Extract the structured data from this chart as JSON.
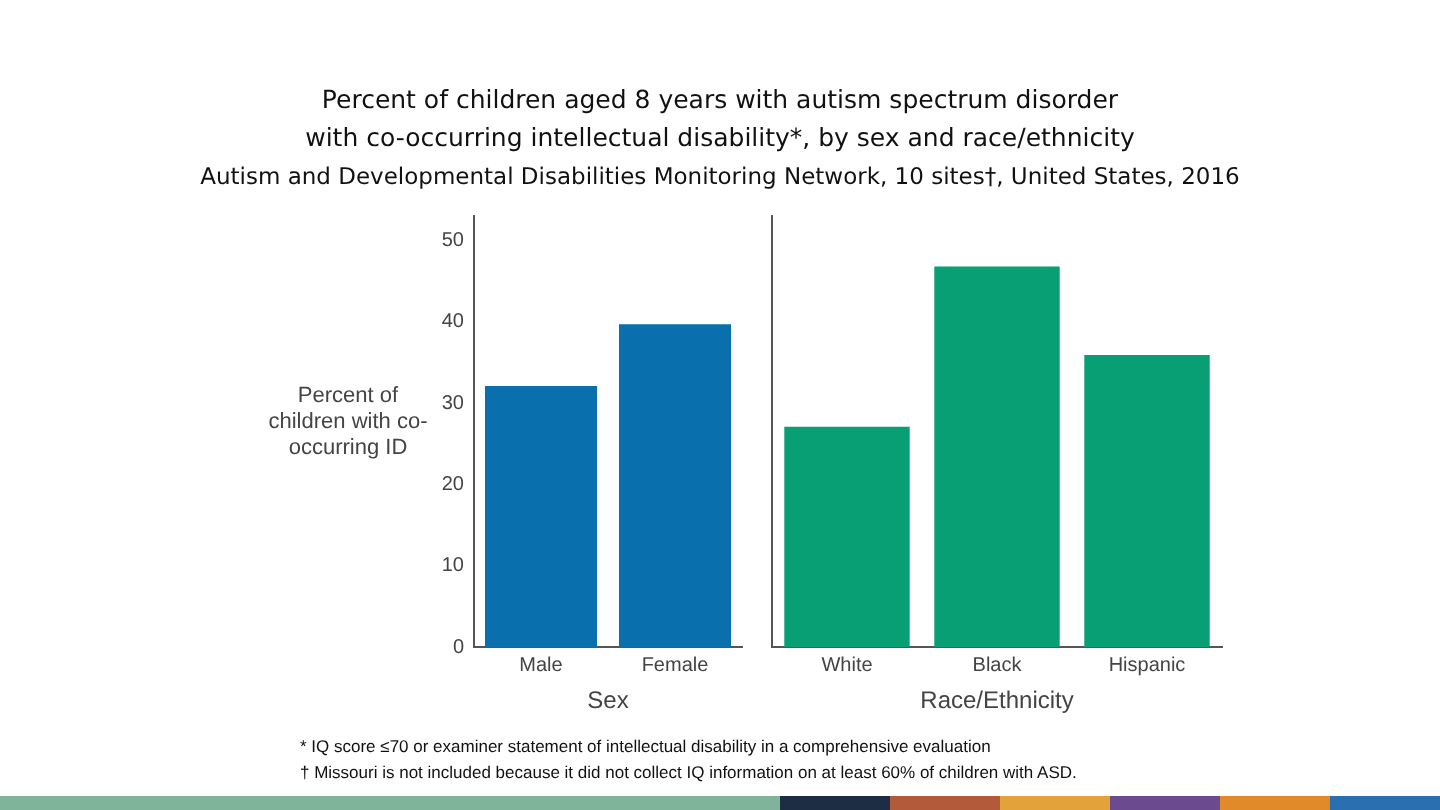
{
  "chart_data": [
    {
      "type": "bar",
      "title": "Percent of children aged 8 years with autism spectrum disorder with co-occurring intellectual disability*, by sex and race/ethnicity",
      "subtitle": "Autism and Developmental Disabilities Monitoring Network, 10 sites†, United States, 2016",
      "ylabel": "Percent of children with co-occurring ID",
      "xlabel": "Sex",
      "categories": [
        "Male",
        "Female"
      ],
      "values": [
        32.1,
        39.7
      ],
      "color": "#0a6fad",
      "ylim": [
        0,
        53
      ],
      "yticks": [
        0,
        10,
        20,
        30,
        40,
        50
      ],
      "annotations": [
        "* IQ score ≤70 or examiner statement of intellectual disability in a comprehensive evaluation",
        "† Missouri is not included because it did not collect IQ information on at least 60% of children with ASD."
      ]
    },
    {
      "type": "bar",
      "xlabel": "Race/Ethnicity",
      "categories": [
        "White",
        "Black",
        "Hispanic"
      ],
      "values": [
        27.1,
        46.8,
        35.9
      ],
      "color": "#089f74",
      "ylim": [
        0,
        53
      ],
      "yticks": [
        0,
        10,
        20,
        30,
        40,
        50
      ],
      "tick_labels": "x"
    }
  ]
}
